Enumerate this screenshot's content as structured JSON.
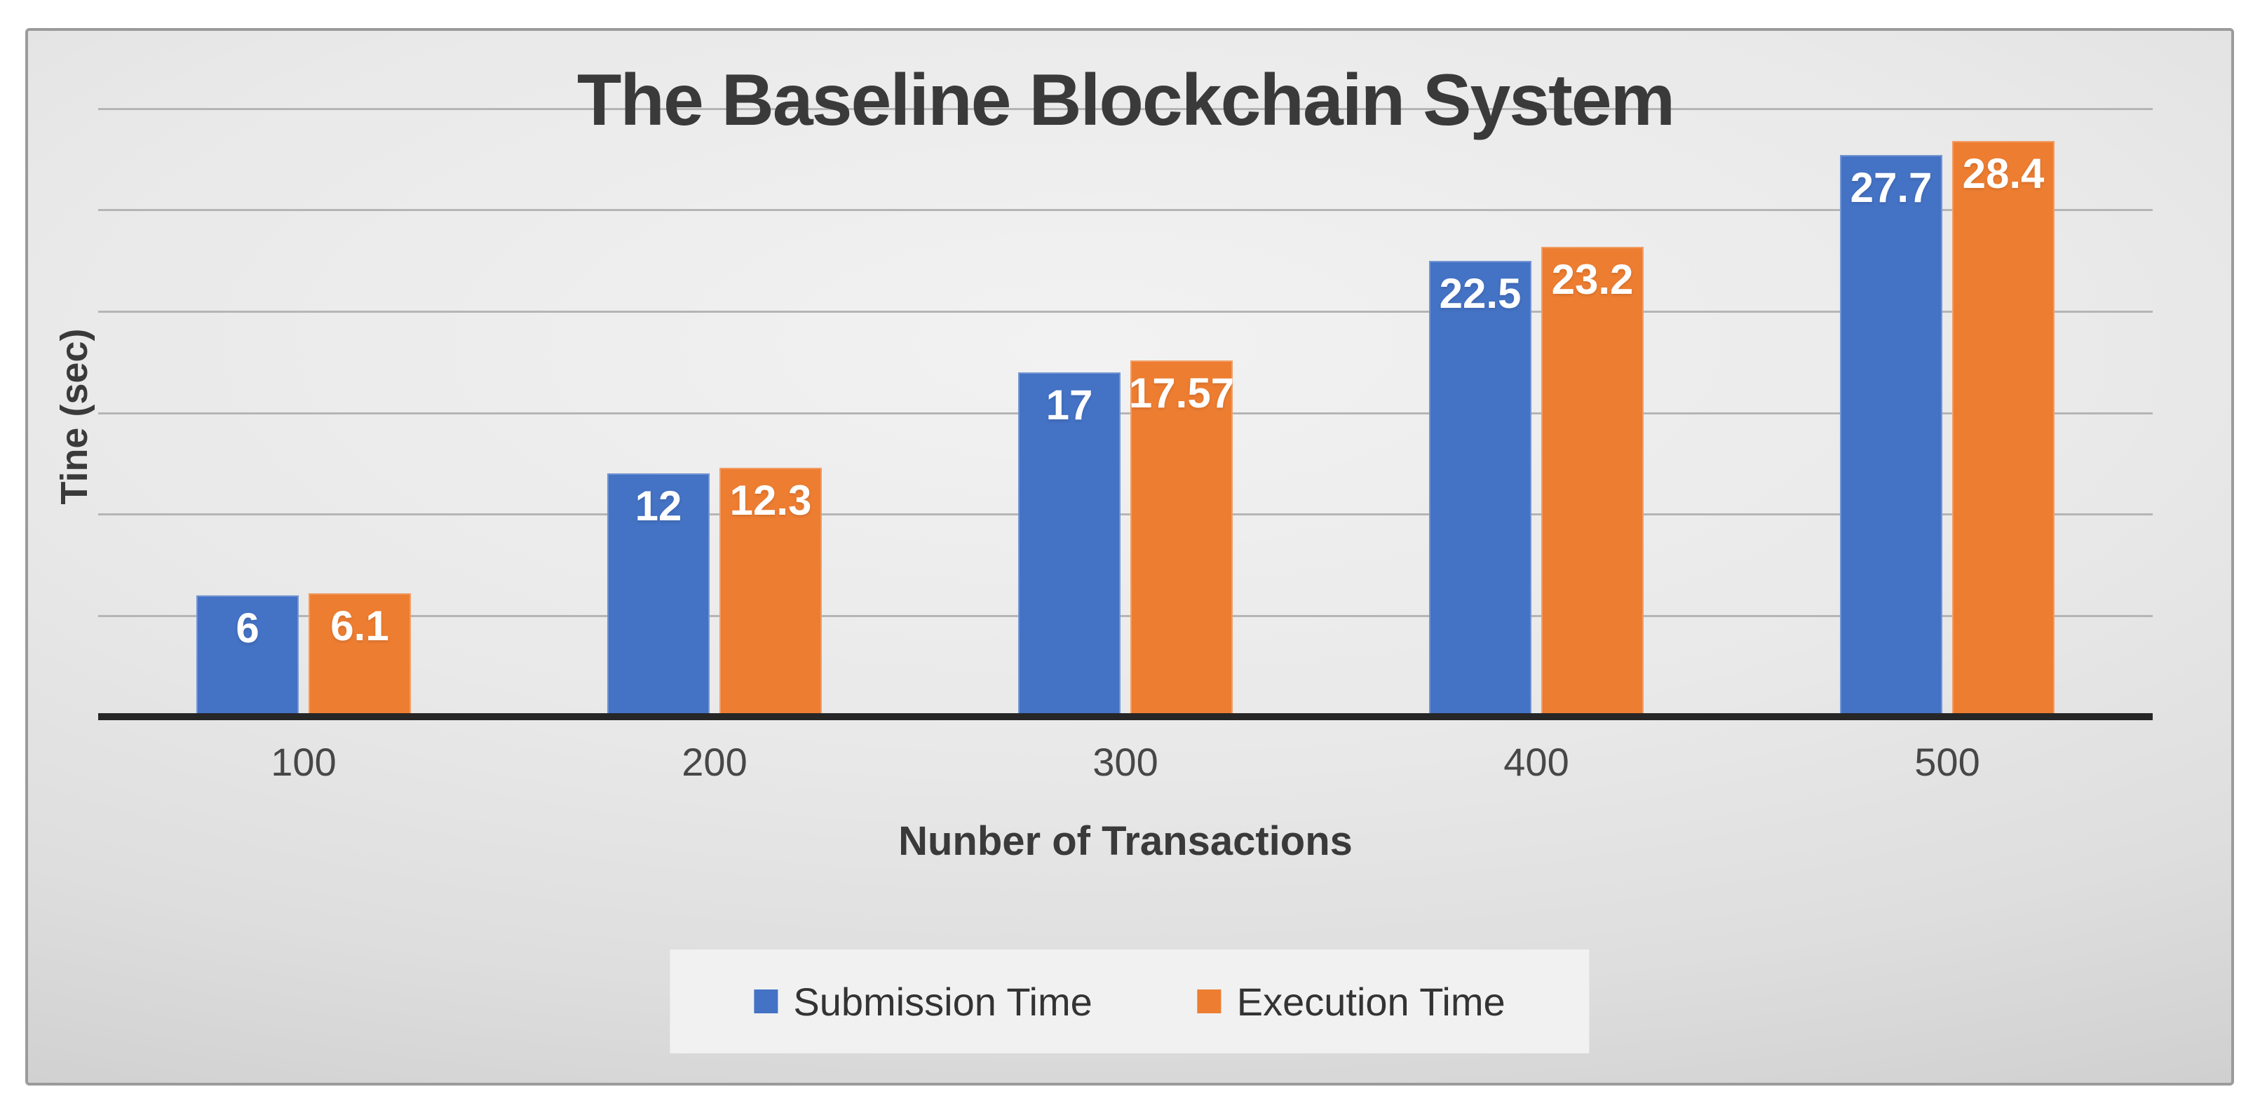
{
  "chart_data": {
    "type": "bar",
    "title": "The Baseline Blockchain System",
    "xlabel": "Nunber of Transactions",
    "ylabel": "Tine (sec)",
    "categories": [
      "100",
      "200",
      "300",
      "400",
      "500"
    ],
    "series": [
      {
        "name": "Submission Time",
        "color": "#4472C4",
        "values": [
          6,
          12,
          17,
          22.5,
          27.7
        ],
        "labels": [
          "6",
          "12",
          "17",
          "22.5",
          "27.7"
        ]
      },
      {
        "name": "Execution Time",
        "color": "#ED7D31",
        "values": [
          6.1,
          12.3,
          17.57,
          23.2,
          28.4
        ],
        "labels": [
          "6.1",
          "12.3",
          "17.57",
          "23.2",
          "28.4"
        ]
      }
    ],
    "ylim": [
      0,
      30
    ],
    "grid_step": 5,
    "grid": true,
    "y_tick_labels_visible": false,
    "legend_position": "bottom"
  }
}
